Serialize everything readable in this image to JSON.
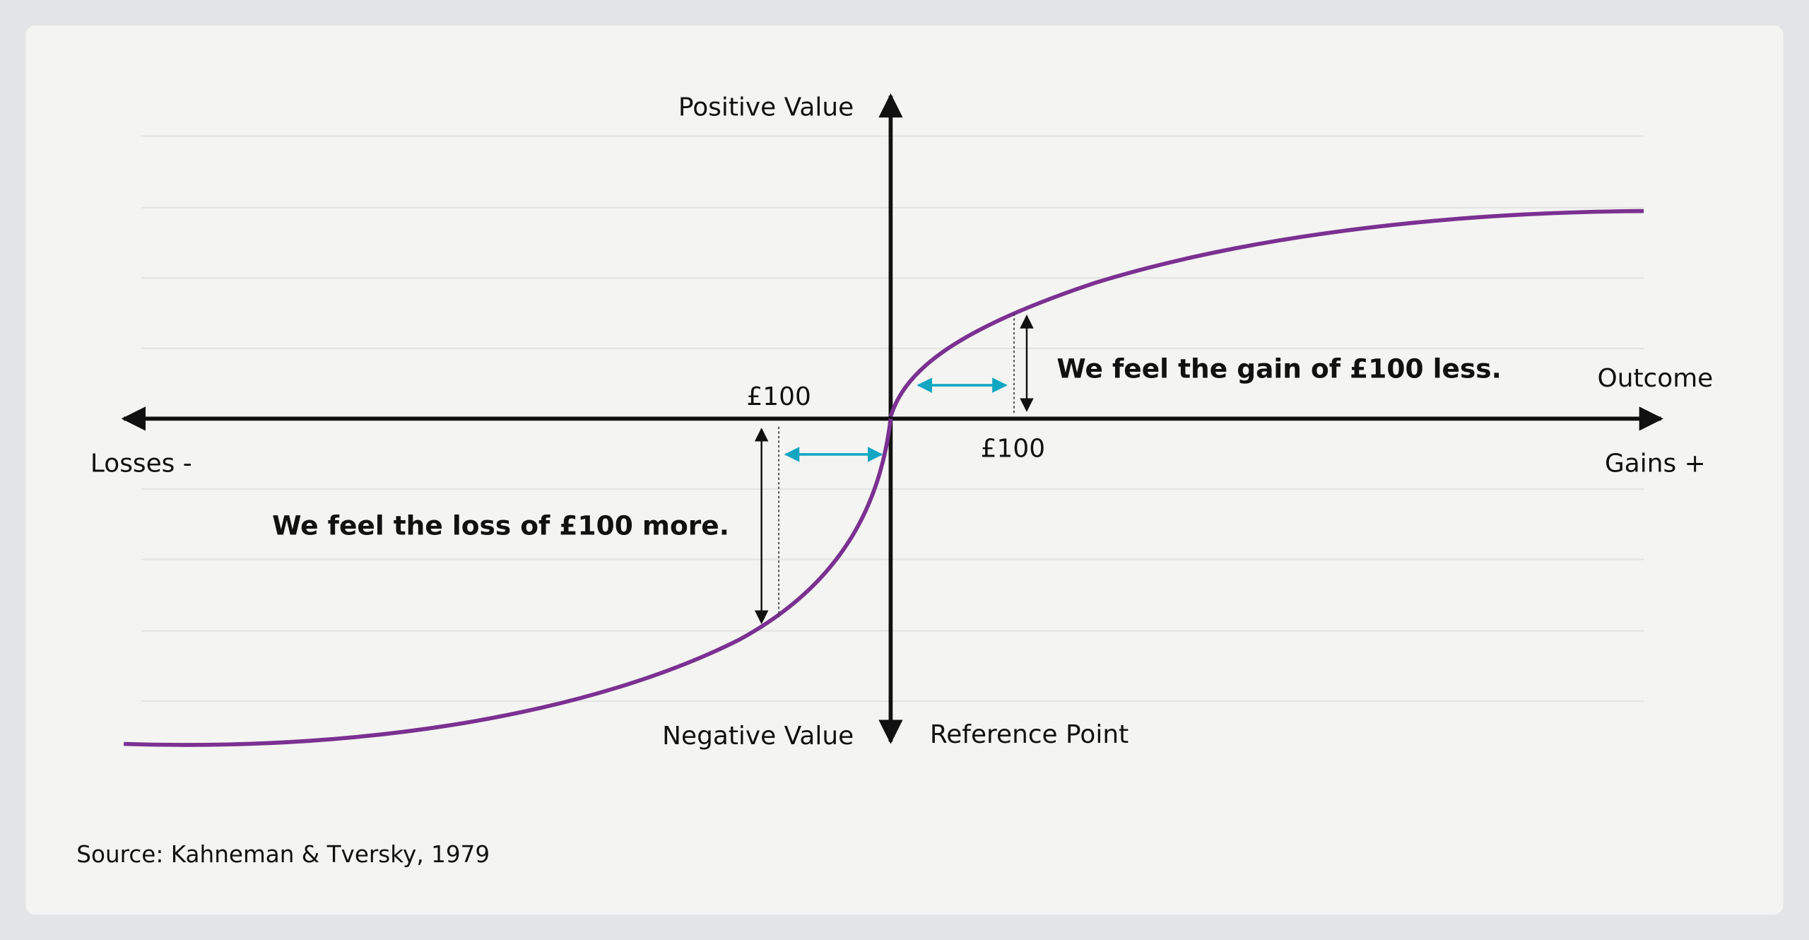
{
  "labels": {
    "positive_value": "Positive Value",
    "negative_value": "Negative Value",
    "reference_point": "Reference Point",
    "outcome": "Outcome",
    "losses": "Losses -",
    "gains": "Gains +",
    "loss_amount": "£100",
    "gain_amount": "£100",
    "gain_note": "We feel the gain of £100 less.",
    "loss_note": "We feel the loss of £100 more."
  },
  "source": "Source: Kahneman & Tversky, 1979"
}
